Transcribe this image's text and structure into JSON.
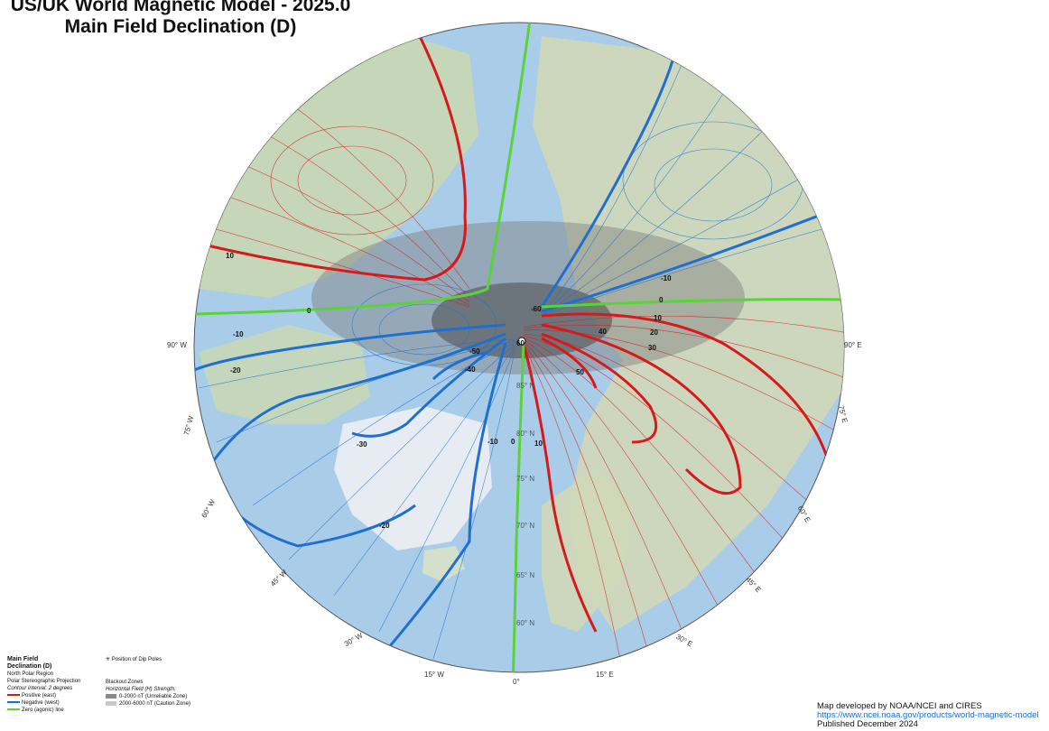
{
  "title": {
    "line1": "US/UK World Magnetic Model - 2025.0",
    "line2": "Main Field Declination (D)"
  },
  "map": {
    "longitude_labels": {
      "w90": "90° W",
      "e90": "90° E",
      "w75": "75° W",
      "e75": "75° E",
      "w60": "60° W",
      "e60": "60° E",
      "w45": "45° W",
      "e45": "45° E",
      "w30": "30° W",
      "e30": "30° E",
      "w15": "15° W",
      "e15": "15° E",
      "zero": "0°"
    },
    "latitude_labels": {
      "n85": "85° N",
      "n80": "80° N",
      "n75": "75° N",
      "n70": "70° N",
      "n65": "65° N",
      "n60": "60° N"
    },
    "contour_labels": {
      "p10a": "10",
      "n10a": "-10",
      "n10b": "-10",
      "n10c": "-10",
      "z0a": "0",
      "z0b": "0",
      "z0c": "0",
      "p10b": "10",
      "p10c": "10",
      "p20": "20",
      "p30": "30",
      "p40": "40",
      "p50": "50",
      "p60": "60",
      "n20a": "-20",
      "n20b": "-20",
      "n30": "-30",
      "n40": "-40",
      "n50": "-50",
      "n60": "-60"
    },
    "colors": {
      "positive": "#d7191c",
      "negative": "#1f6fd1",
      "zero": "#5ad33a",
      "ocean": "#a9cde8",
      "land": "#c7d6b4"
    }
  },
  "legend": {
    "heading1": "Main Field",
    "heading2": "Declination (D)",
    "region": "North Polar Region",
    "projection": "Polar Stereographic Projection",
    "interval": "Contour interval: 2 degrees",
    "positive": "Positive (east)",
    "negative": "Negative (west)",
    "zero": "Zero (agonic) line",
    "dip_poles": "Position of Dip Poles",
    "blackout_title": "Blackout Zones",
    "blackout_sub": "Horizontal Field (H) Strength:",
    "zone1": "0-2000 nT (Unreliable Zone)",
    "zone2": "2000-6000 nT (Caution Zone)"
  },
  "credits": {
    "line1": "Map developed by NOAA/NCEI and CIRES",
    "url": "https://www.ncei.noaa.gov/products/world-magnetic-model",
    "line3": "Published December 2024"
  }
}
